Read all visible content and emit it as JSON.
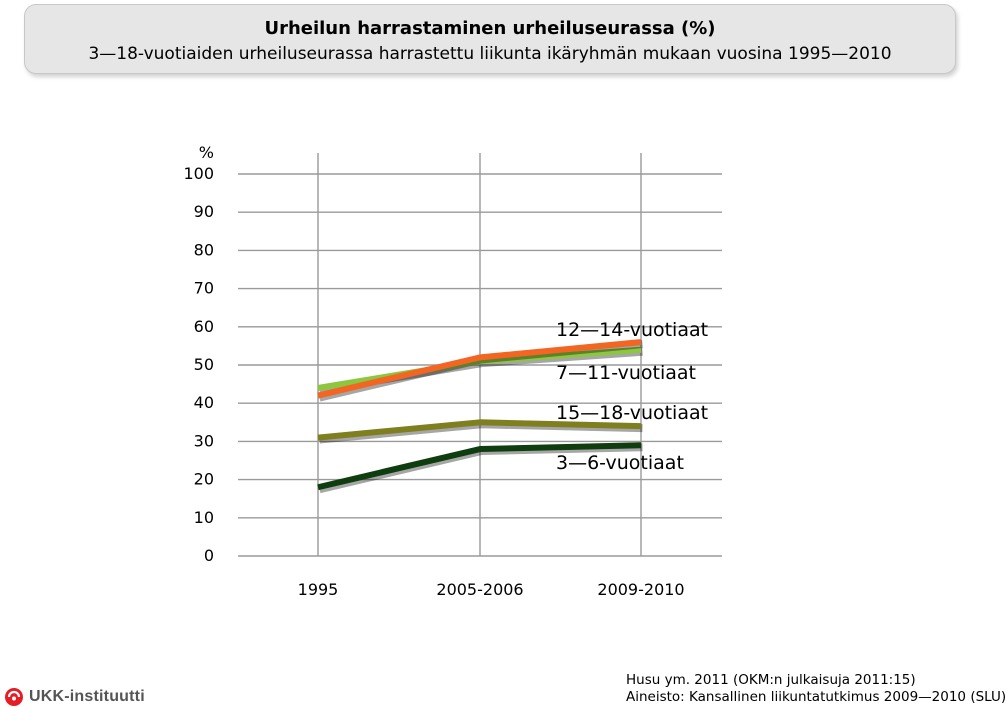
{
  "header": {
    "title": "Urheilun harrastaminen urheiluseurassa (%)",
    "subtitle": "3—18-vuotiaiden urheiluseurassa harrastettu liikunta ikäryhmän mukaan vuosina 1995—2010"
  },
  "chart_data": {
    "type": "line",
    "y_unit_label": "%",
    "y_ticks": [
      "0",
      "10",
      "20",
      "30",
      "40",
      "50",
      "60",
      "70",
      "80",
      "90",
      "100"
    ],
    "ylim": [
      0,
      100
    ],
    "categories": [
      "1995",
      "2005-2006",
      "2009-2010"
    ],
    "grid": true,
    "series": [
      {
        "name": "12—14-vuotiaat",
        "values": [
          42,
          52,
          56
        ],
        "color": "#f26522"
      },
      {
        "name": "7—11-vuotiaat",
        "values": [
          44,
          51,
          54
        ],
        "color": "#8dc63f"
      },
      {
        "name": "15—18-vuotiaat",
        "values": [
          31,
          35,
          34
        ],
        "color": "#7f7f1f"
      },
      {
        "name": "3—6-vuotiaat",
        "values": [
          18,
          28,
          29
        ],
        "color": "#0f3d0f"
      }
    ]
  },
  "source": {
    "line1": "Husu ym. 2011 (OKM:n julkaisuja 2011:15)",
    "line2": "Aineisto: Kansallinen liikuntatutkimus 2009—2010 (SLU)"
  },
  "logo": {
    "text": "UKK-instituutti",
    "color": "#e31e24"
  }
}
